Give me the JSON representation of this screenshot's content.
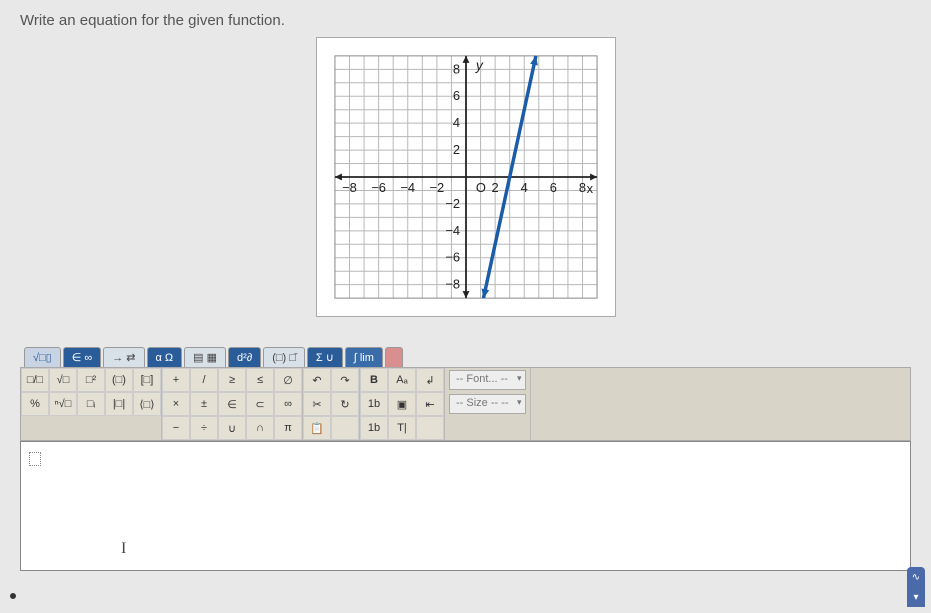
{
  "question": "Write an equation for the given function.",
  "graph": {
    "xmin": -9,
    "xmax": 9,
    "ymin": -9,
    "ymax": 9,
    "tick_step": 2,
    "x_ticks": [
      -8,
      -6,
      -4,
      -2,
      2,
      4,
      6,
      8
    ],
    "y_ticks": [
      -8,
      -6,
      -4,
      -2,
      2,
      4,
      6,
      8
    ],
    "x_label": "x",
    "y_label": "y",
    "origin_label": "O",
    "grid_color": "#b8b8b8",
    "axis_color": "#222222",
    "line_color": "#1a5ca8",
    "line_width": 3.5,
    "background": "#ffffff",
    "label_fontsize": 14,
    "tick_fontsize": 13,
    "line_points": [
      [
        1.2,
        -9
      ],
      [
        4.8,
        9
      ]
    ],
    "has_arrows": true
  },
  "tabs": [
    {
      "label": "√□▯",
      "key": "root"
    },
    {
      "label": "∈ ∞",
      "key": "set"
    },
    {
      "label": "→ ⇄",
      "key": "arrows"
    },
    {
      "label": "α Ω",
      "key": "greek"
    },
    {
      "label": "▤ ▦",
      "key": "matrix"
    },
    {
      "label": "d²∂",
      "key": "calc"
    },
    {
      "label": "(□) □̄",
      "key": "group"
    },
    {
      "label": "Σ ∪",
      "key": "sigma"
    },
    {
      "label": "∫ lim",
      "key": "integral"
    },
    {
      "label": "",
      "key": "blank"
    }
  ],
  "toolbar": {
    "g1_r1": [
      "□/□",
      "√□",
      "□²",
      "(□)",
      "[□]"
    ],
    "g1_r2": [
      "%",
      "ⁿ√□",
      "□ᵢ",
      "|□|",
      "⟨□⟩"
    ],
    "g2_r1": [
      "+",
      "/",
      "≥",
      "≤",
      "∅"
    ],
    "g2_r2": [
      "×",
      "±",
      "∈",
      "⊂",
      "∞"
    ],
    "g2_r3": [
      "−",
      "÷",
      "∪",
      "∩",
      "π"
    ],
    "g3_r1": [
      "↶",
      "↷"
    ],
    "g3_r2": [
      "✂",
      "↻"
    ],
    "g3_r3": [
      "📋",
      ""
    ],
    "g4_r1": [
      "B",
      "Aₐ",
      "↲"
    ],
    "g4_r2": [
      "1b",
      "▣",
      "⇤"
    ],
    "g4_r3": [
      "1b",
      "T|",
      ""
    ]
  },
  "dropdowns": {
    "font_label": "-- Font... --",
    "size_label": "-- Size -- --"
  },
  "input": {
    "content": "",
    "cursor_glyph": "I"
  },
  "colors": {
    "page_bg": "#e8e8e8",
    "tab_active_bg": "#2a5c9a",
    "tab_bg": "#d8e0e8",
    "toolbar_bg": "#d8d4c8",
    "btn_bg": "#e4e0d4",
    "accent": "#4a6aaa"
  }
}
